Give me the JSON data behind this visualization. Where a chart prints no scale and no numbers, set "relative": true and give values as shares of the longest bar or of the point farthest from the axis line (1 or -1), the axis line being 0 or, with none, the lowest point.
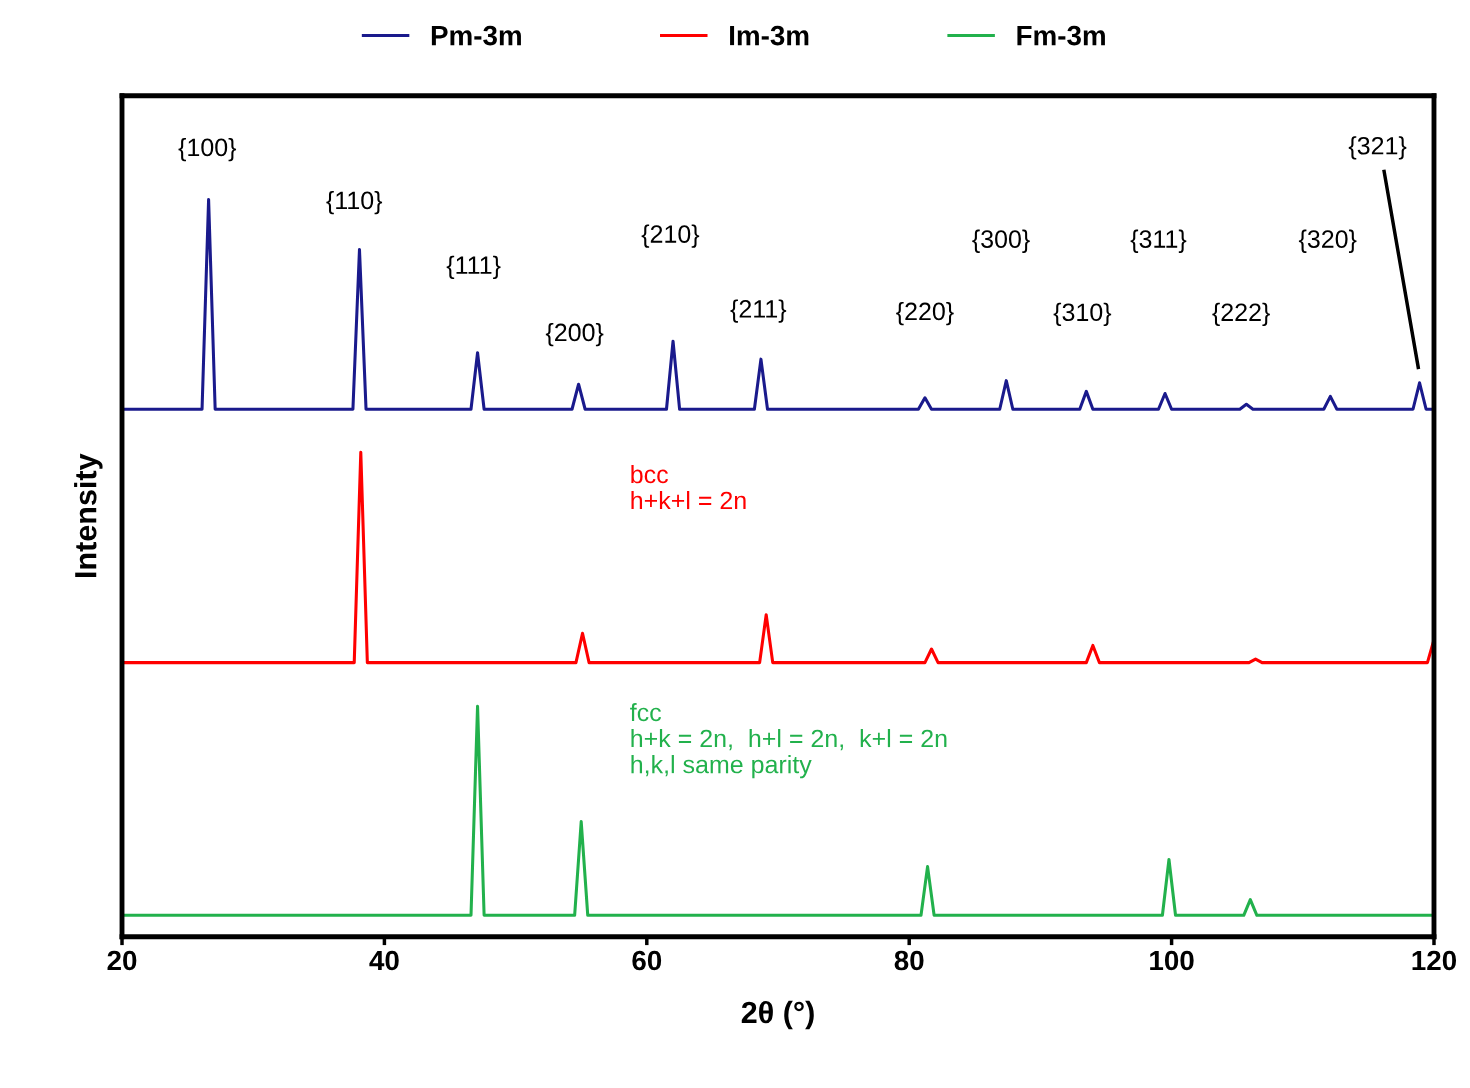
{
  "chart_data": {
    "type": "line",
    "relative": true,
    "xlabel": "2θ (°)",
    "ylabel": "Intensity",
    "xlim": [
      20,
      120
    ],
    "xticks": [
      20,
      40,
      60,
      80,
      100,
      120
    ],
    "tick_labels": "x",
    "grid": false,
    "legend": "top",
    "marker": "none",
    "line_style": "solid",
    "series": [
      {
        "name": "Pm-3m",
        "color": "#1a1a8c",
        "x": [
          20,
          26.1,
          26.6,
          27.1,
          37.6,
          38.1,
          38.6,
          46.6,
          47.1,
          47.6,
          54.3,
          54.8,
          55.3,
          61.5,
          62.0,
          62.5,
          68.2,
          68.7,
          69.2,
          80.7,
          81.2,
          81.7,
          86.9,
          87.4,
          87.9,
          93.0,
          93.5,
          94.0,
          99.0,
          99.5,
          100.0,
          105.2,
          105.7,
          106.2,
          111.6,
          112.1,
          112.6,
          118.4,
          118.9,
          119.4,
          120
        ],
        "values": [
          0.707,
          0.707,
          1.0,
          0.707,
          0.707,
          0.93,
          0.707,
          0.707,
          0.786,
          0.707,
          0.707,
          0.742,
          0.707,
          0.707,
          0.802,
          0.707,
          0.707,
          0.777,
          0.707,
          0.707,
          0.723,
          0.707,
          0.707,
          0.747,
          0.707,
          0.707,
          0.732,
          0.707,
          0.707,
          0.729,
          0.707,
          0.707,
          0.714,
          0.707,
          0.707,
          0.725,
          0.707,
          0.707,
          0.744,
          0.707,
          0.707
        ]
      },
      {
        "name": "Im-3m",
        "color": "#ff0000",
        "x": [
          20,
          37.7,
          38.2,
          38.7,
          54.6,
          55.1,
          55.6,
          68.6,
          69.1,
          69.6,
          81.2,
          81.7,
          82.2,
          93.5,
          94.0,
          94.5,
          105.9,
          106.4,
          106.9,
          119.5,
          120
        ],
        "values": [
          0.353,
          0.353,
          0.647,
          0.353,
          0.353,
          0.394,
          0.353,
          0.353,
          0.42,
          0.353,
          0.353,
          0.372,
          0.353,
          0.353,
          0.377,
          0.353,
          0.353,
          0.358,
          0.353,
          0.353,
          0.385
        ]
      },
      {
        "name": "Fm-3m",
        "color": "#22b14c",
        "x": [
          20,
          46.6,
          47.1,
          47.6,
          54.5,
          55.0,
          55.5,
          80.9,
          81.4,
          81.9,
          99.3,
          99.8,
          100.3,
          105.5,
          106.0,
          106.5,
          120
        ],
        "values": [
          0,
          0,
          0.292,
          0,
          0,
          0.131,
          0,
          0,
          0.068,
          0,
          0,
          0.078,
          0,
          0,
          0.022,
          0,
          0
        ]
      }
    ],
    "annotations": [
      "{100}",
      "{110}",
      "{111}",
      "{200}",
      "{210}",
      "{211}",
      "{220}",
      "{300}",
      "{310}",
      "{311}",
      "{222}",
      "{320}",
      "{321}",
      "bcc\nh+k+l = 2n",
      "fcc\nh+k = 2n,  h+l = 2n,  k+l = 2n\nh,k,l same parity"
    ]
  }
}
